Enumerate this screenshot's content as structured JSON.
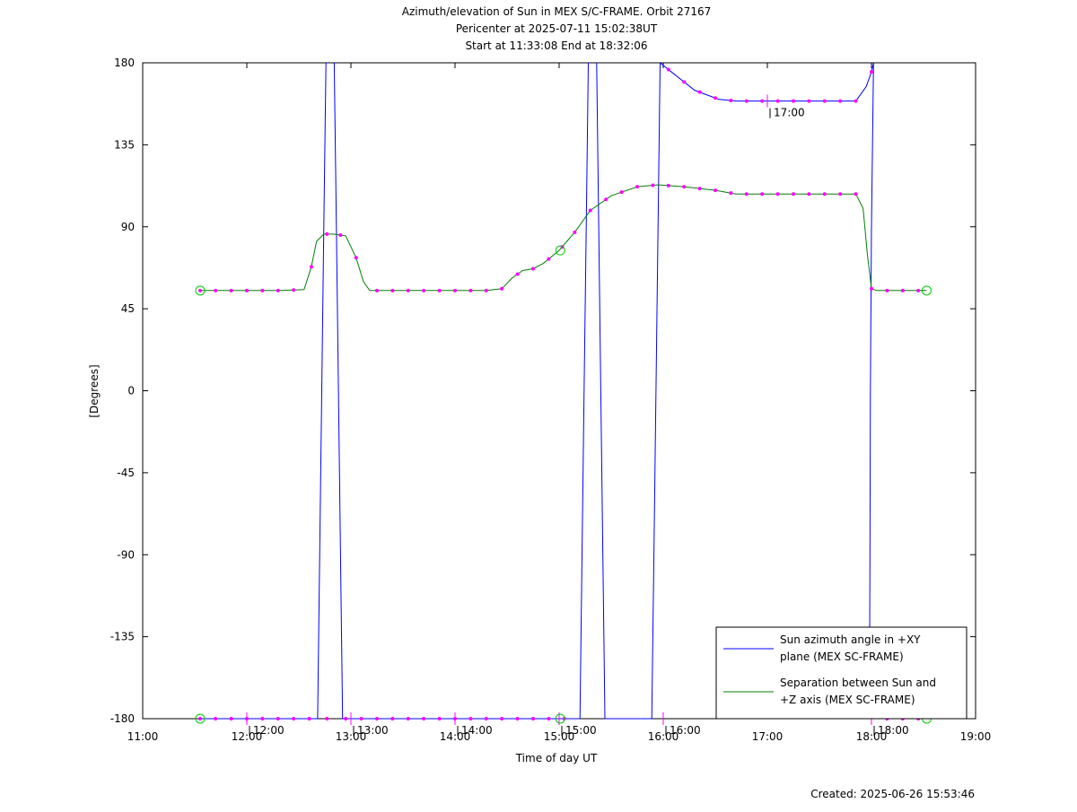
{
  "chart_data": {
    "type": "line",
    "title_lines": [
      "Azimuth/elevation of Sun in MEX S/C-FRAME.  Orbit 27167",
      "Pericenter at 2025-07-11 15:02:38UT",
      "Start at 11:33:08 End at 18:32:06"
    ],
    "xlabel": "Time of day UT",
    "ylabel": "[Degrees]",
    "xlim": [
      11,
      19
    ],
    "ylim": [
      -180,
      180
    ],
    "x_ticks": [
      11,
      12,
      13,
      14,
      15,
      16,
      17,
      18,
      19
    ],
    "x_tick_labels": [
      "11:00",
      "12:00",
      "13:00",
      "14:00",
      "15:00",
      "16:00",
      "17:00",
      "18:00",
      "19:00"
    ],
    "y_ticks": [
      -180,
      -135,
      -90,
      -45,
      0,
      45,
      90,
      135,
      180
    ],
    "y_tick_labels": [
      "-180",
      "-135",
      "-90",
      "-45",
      "0",
      "45",
      "90",
      "135",
      "180"
    ],
    "legend_position": "bottom-right",
    "series": [
      {
        "name": "Sun azimuth angle in +XY plane (MEX SC-FRAME)",
        "legend_lines": [
          "Sun azimuth angle in +XY",
          "plane (MEX SC-FRAME)"
        ],
        "color": "#0000ff",
        "segments": [
          [
            [
              11.552,
              -180
            ],
            [
              12.68,
              -180
            ],
            [
              12.7,
              -90
            ],
            [
              12.72,
              0
            ],
            [
              12.74,
              90
            ],
            [
              12.76,
              180
            ]
          ],
          [
            [
              12.84,
              180
            ],
            [
              12.86,
              90
            ],
            [
              12.88,
              0
            ],
            [
              12.9,
              -90
            ],
            [
              12.92,
              -180
            ],
            [
              15.2,
              -180
            ]
          ],
          [
            [
              15.2,
              -180
            ],
            [
              15.22,
              -90
            ],
            [
              15.24,
              0
            ],
            [
              15.26,
              90
            ],
            [
              15.28,
              180
            ]
          ],
          [
            [
              15.36,
              180
            ],
            [
              15.38,
              90
            ],
            [
              15.4,
              0
            ],
            [
              15.42,
              -90
            ],
            [
              15.44,
              -180
            ],
            [
              15.89,
              -180
            ]
          ],
          [
            [
              15.89,
              -180
            ],
            [
              15.91,
              -90
            ],
            [
              15.93,
              0
            ],
            [
              15.95,
              90
            ],
            [
              15.97,
              180
            ]
          ],
          [
            [
              15.97,
              180
            ],
            [
              16.1,
              174
            ],
            [
              16.3,
              165
            ],
            [
              16.53,
              160
            ],
            [
              16.7,
              159
            ],
            [
              17.0,
              159
            ],
            [
              17.5,
              159
            ],
            [
              17.85,
              159
            ],
            [
              17.95,
              167
            ],
            [
              18.0,
              175
            ],
            [
              18.02,
              180
            ]
          ],
          [
            [
              18.02,
              180
            ],
            [
              18.0,
              90
            ],
            [
              17.99,
              0
            ],
            [
              17.985,
              -90
            ],
            [
              17.98,
              -180
            ],
            [
              18.53,
              -180
            ]
          ]
        ]
      },
      {
        "name": "Separation between Sun and +Z axis (MEX SC-FRAME)",
        "legend_lines": [
          "Separation between Sun and",
          "+Z axis (MEX SC-FRAME)"
        ],
        "color": "#008000",
        "points": [
          [
            11.552,
            55
          ],
          [
            11.83,
            55
          ],
          [
            12.08,
            55
          ],
          [
            12.33,
            55
          ],
          [
            12.55,
            55.5
          ],
          [
            12.62,
            68
          ],
          [
            12.67,
            82
          ],
          [
            12.74,
            86
          ],
          [
            12.83,
            86
          ],
          [
            12.95,
            85
          ],
          [
            13.05,
            73
          ],
          [
            13.12,
            60
          ],
          [
            13.18,
            55
          ],
          [
            13.5,
            55
          ],
          [
            14.0,
            55
          ],
          [
            14.3,
            55
          ],
          [
            14.45,
            56
          ],
          [
            14.55,
            62
          ],
          [
            14.65,
            66
          ],
          [
            14.75,
            67
          ],
          [
            14.85,
            70
          ],
          [
            15.0,
            77
          ],
          [
            15.15,
            87
          ],
          [
            15.3,
            99
          ],
          [
            15.5,
            107
          ],
          [
            15.75,
            112
          ],
          [
            15.95,
            113
          ],
          [
            16.2,
            112
          ],
          [
            16.5,
            110
          ],
          [
            16.7,
            108
          ],
          [
            17.0,
            108
          ],
          [
            17.5,
            108
          ],
          [
            17.85,
            108
          ],
          [
            17.92,
            100
          ],
          [
            17.96,
            75
          ],
          [
            18.0,
            56
          ],
          [
            18.05,
            55
          ],
          [
            18.3,
            55
          ],
          [
            18.53,
            55
          ]
        ]
      }
    ],
    "markers": {
      "color": "#ff00ff",
      "azimuth_times": [
        11.552,
        11.7,
        11.85,
        12.0,
        12.15,
        12.3,
        12.45,
        12.6,
        12.77,
        12.95,
        13.1,
        13.25,
        13.4,
        13.55,
        13.7,
        13.85,
        14.0,
        14.15,
        14.3,
        14.45,
        14.6,
        14.75,
        14.9,
        15.05,
        16.05,
        16.2,
        16.35,
        16.5,
        16.65,
        16.8,
        16.95,
        17.1,
        17.25,
        17.4,
        17.55,
        17.7,
        17.85,
        18.0,
        18.15,
        18.3,
        18.45
      ],
      "separation_times": [
        11.552,
        11.7,
        11.85,
        12.0,
        12.15,
        12.3,
        12.45,
        12.62,
        12.77,
        12.9,
        13.05,
        13.25,
        13.4,
        13.55,
        13.7,
        13.85,
        14.0,
        14.15,
        14.3,
        14.45,
        14.6,
        14.75,
        14.9,
        15.03,
        15.15,
        15.3,
        15.45,
        15.6,
        15.75,
        15.9,
        16.05,
        16.2,
        16.35,
        16.5,
        16.65,
        16.8,
        16.95,
        17.1,
        17.25,
        17.4,
        17.55,
        17.7,
        17.85,
        18.0,
        18.15,
        18.3,
        18.45
      ]
    },
    "start_end_circles": {
      "color": "#00cc00",
      "points": [
        [
          11.552,
          55
        ],
        [
          11.552,
          -180
        ],
        [
          18.53,
          55
        ],
        [
          18.53,
          -180
        ],
        [
          15.01,
          77
        ],
        [
          15.01,
          -180
        ]
      ]
    },
    "hour_tick_labels": [
      {
        "x": 12.0,
        "y": -180,
        "label": "12:00"
      },
      {
        "x": 13.0,
        "y": -180,
        "label": "13:00"
      },
      {
        "x": 14.0,
        "y": -180,
        "label": "14:00"
      },
      {
        "x": 15.0,
        "y": -180,
        "label": "15:00"
      },
      {
        "x": 16.0,
        "y": -180,
        "label": "16:00"
      },
      {
        "x": 17.0,
        "y": 159,
        "label": "17:00"
      },
      {
        "x": 18.0,
        "y": -180,
        "label": "18:00"
      }
    ]
  },
  "footer": {
    "created": "Created: 2025-06-26 15:53:46"
  }
}
